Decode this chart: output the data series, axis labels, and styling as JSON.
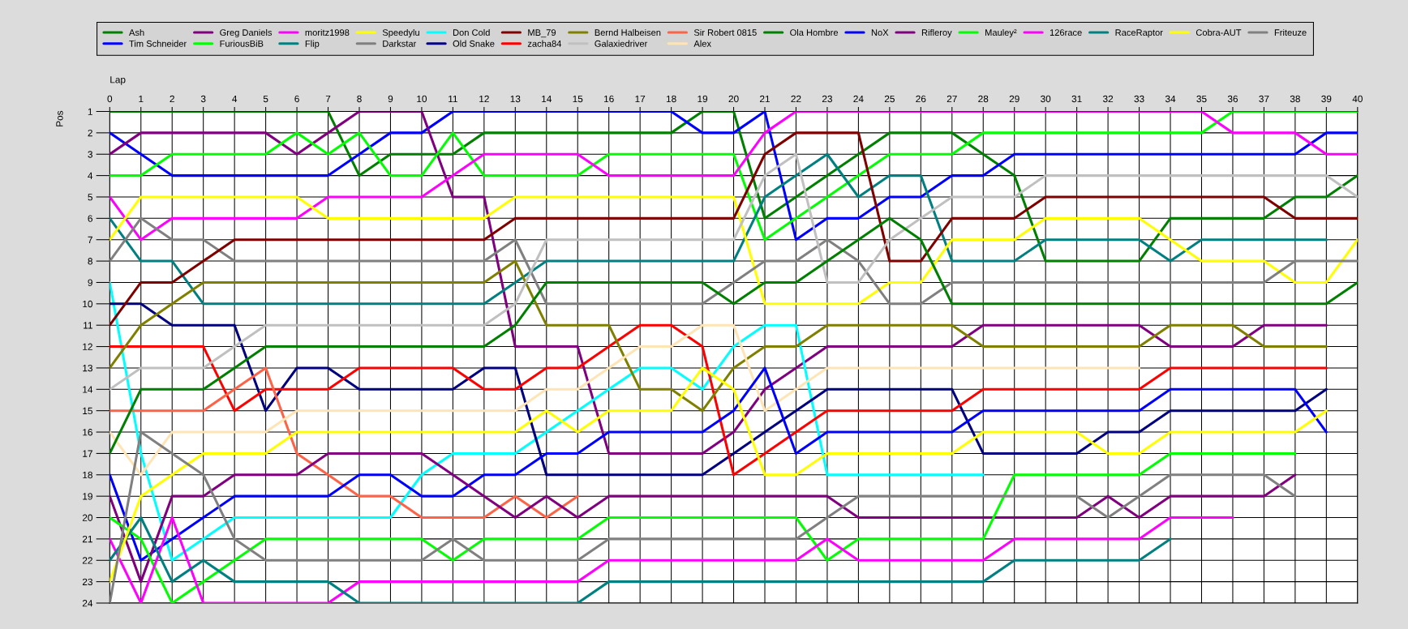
{
  "chart_data": {
    "type": "line",
    "xlabel": "Lap",
    "ylabel": "Pos",
    "x": [
      0,
      1,
      2,
      3,
      4,
      5,
      6,
      7,
      8,
      9,
      10,
      11,
      12,
      13,
      14,
      15,
      16,
      17,
      18,
      19,
      20,
      21,
      22,
      23,
      24,
      25,
      26,
      27,
      28,
      29,
      30,
      31,
      32,
      33,
      34,
      35,
      36,
      37,
      38,
      39,
      40
    ],
    "xlim": [
      0,
      40
    ],
    "xticks": [
      0,
      1,
      2,
      3,
      4,
      5,
      6,
      7,
      8,
      9,
      10,
      11,
      12,
      13,
      14,
      15,
      16,
      17,
      18,
      19,
      20,
      21,
      22,
      23,
      24,
      25,
      26,
      27,
      28,
      29,
      30,
      31,
      32,
      33,
      34,
      35,
      36,
      37,
      38,
      39,
      40
    ],
    "ylim": [
      24,
      1
    ],
    "yticks": [
      1,
      2,
      3,
      4,
      5,
      6,
      7,
      8,
      9,
      10,
      11,
      12,
      13,
      14,
      15,
      16,
      17,
      18,
      19,
      20,
      21,
      22,
      23,
      24
    ],
    "grid": true,
    "legend": "top",
    "series": [
      {
        "name": "Ash",
        "color": "#008000",
        "values": [
          1,
          1,
          1,
          1,
          1,
          1,
          1,
          1,
          4,
          3,
          3,
          3,
          2,
          2,
          2,
          2,
          2,
          2,
          2,
          1,
          1,
          6,
          5,
          4,
          3,
          2,
          2,
          2,
          3,
          4,
          8,
          8,
          8,
          8,
          6,
          6,
          6,
          6,
          5,
          5,
          4
        ]
      },
      {
        "name": "Tim Schneider",
        "color": "#0000ff",
        "values": [
          2,
          3,
          4,
          4,
          4,
          4,
          4,
          4,
          3,
          2,
          2,
          1,
          1,
          1,
          1,
          1,
          1,
          1,
          1,
          2,
          2,
          1,
          7,
          6,
          6,
          5,
          5,
          4,
          4,
          3,
          3,
          3,
          3,
          3,
          3,
          3,
          3,
          3,
          3,
          2,
          2
        ]
      },
      {
        "name": "Greg Daniels",
        "color": "#800080",
        "values": [
          3,
          2,
          2,
          2,
          2,
          2,
          3,
          2,
          1,
          1,
          1,
          5,
          5,
          12,
          12,
          12,
          17,
          17,
          17,
          17,
          16,
          14,
          13,
          12,
          12,
          12,
          12,
          12,
          11,
          11,
          11,
          11,
          11,
          11,
          12,
          12,
          12,
          11,
          11,
          11,
          null
        ]
      },
      {
        "name": "FuriousBiB",
        "color": "#00ff00",
        "values": [
          4,
          4,
          3,
          3,
          3,
          3,
          2,
          3,
          2,
          4,
          4,
          2,
          4,
          4,
          4,
          4,
          3,
          3,
          3,
          3,
          3,
          7,
          6,
          5,
          4,
          3,
          3,
          3,
          2,
          2,
          2,
          2,
          2,
          2,
          2,
          2,
          1,
          1,
          1,
          1,
          1
        ]
      },
      {
        "name": "moritz1998",
        "color": "#ff00ff",
        "values": [
          5,
          7,
          6,
          6,
          6,
          6,
          6,
          5,
          5,
          5,
          5,
          4,
          3,
          3,
          3,
          3,
          4,
          4,
          4,
          4,
          4,
          2,
          1,
          1,
          1,
          1,
          1,
          1,
          1,
          1,
          1,
          1,
          1,
          1,
          1,
          1,
          2,
          2,
          2,
          3,
          3
        ]
      },
      {
        "name": "Flip",
        "color": "#008080",
        "values": [
          6,
          8,
          8,
          10,
          10,
          10,
          10,
          10,
          10,
          10,
          10,
          10,
          10,
          9,
          8,
          8,
          8,
          8,
          8,
          8,
          8,
          5,
          4,
          3,
          5,
          4,
          4,
          8,
          8,
          8,
          7,
          7,
          7,
          7,
          8,
          7,
          7,
          7,
          7,
          7,
          null
        ]
      },
      {
        "name": "Speedylu",
        "color": "#ffff00",
        "values": [
          7,
          5,
          5,
          5,
          5,
          5,
          5,
          6,
          6,
          6,
          6,
          6,
          6,
          5,
          5,
          5,
          5,
          5,
          5,
          5,
          5,
          10,
          10,
          10,
          10,
          9,
          9,
          7,
          7,
          7,
          6,
          6,
          6,
          6,
          7,
          8,
          8,
          8,
          9,
          9,
          7
        ]
      },
      {
        "name": "Darkstar",
        "color": "#808080",
        "values": [
          8,
          6,
          7,
          7,
          8,
          8,
          8,
          8,
          8,
          8,
          8,
          8,
          8,
          7,
          10,
          10,
          10,
          10,
          10,
          10,
          9,
          8,
          8,
          7,
          8,
          10,
          10,
          9,
          9,
          9,
          9,
          9,
          9,
          9,
          9,
          9,
          9,
          9,
          8,
          8,
          8
        ]
      },
      {
        "name": "Don Cold",
        "color": "#00ffff",
        "values": [
          9,
          17,
          22,
          21,
          20,
          20,
          20,
          20,
          20,
          20,
          18,
          17,
          17,
          17,
          16,
          15,
          14,
          13,
          13,
          14,
          12,
          11,
          11,
          18,
          18,
          18,
          18,
          18,
          18,
          null,
          null,
          null,
          null,
          null,
          null,
          null,
          null,
          null,
          null,
          null,
          null
        ]
      },
      {
        "name": "Old Snake",
        "color": "#000080",
        "values": [
          10,
          10,
          11,
          11,
          11,
          15,
          13,
          13,
          14,
          14,
          14,
          14,
          13,
          13,
          18,
          18,
          18,
          18,
          18,
          18,
          17,
          16,
          15,
          14,
          14,
          14,
          14,
          14,
          17,
          17,
          17,
          17,
          16,
          16,
          15,
          15,
          15,
          15,
          15,
          14,
          null
        ]
      },
      {
        "name": "MB_79",
        "color": "#800000",
        "values": [
          11,
          9,
          9,
          8,
          7,
          7,
          7,
          7,
          7,
          7,
          7,
          7,
          7,
          6,
          6,
          6,
          6,
          6,
          6,
          6,
          6,
          3,
          2,
          2,
          2,
          8,
          8,
          6,
          6,
          6,
          5,
          5,
          5,
          5,
          5,
          5,
          5,
          5,
          6,
          6,
          6
        ]
      },
      {
        "name": "zacha84",
        "color": "#ff0000",
        "values": [
          12,
          12,
          12,
          12,
          15,
          14,
          14,
          14,
          13,
          13,
          13,
          13,
          14,
          14,
          13,
          13,
          12,
          11,
          11,
          12,
          18,
          17,
          16,
          15,
          15,
          15,
          15,
          15,
          14,
          14,
          14,
          14,
          14,
          14,
          13,
          13,
          13,
          13,
          13,
          13,
          null
        ]
      },
      {
        "name": "Bernd Halbeisen",
        "color": "#808000",
        "values": [
          13,
          11,
          10,
          9,
          9,
          9,
          9,
          9,
          9,
          9,
          9,
          9,
          9,
          8,
          11,
          11,
          11,
          14,
          14,
          15,
          13,
          12,
          12,
          11,
          11,
          11,
          11,
          11,
          12,
          12,
          12,
          12,
          12,
          12,
          11,
          11,
          11,
          12,
          12,
          12,
          null
        ]
      },
      {
        "name": "Galaxiedriver",
        "color": "#c0c0c0",
        "values": [
          14,
          13,
          13,
          13,
          12,
          11,
          11,
          11,
          11,
          11,
          11,
          11,
          11,
          10,
          7,
          7,
          7,
          7,
          7,
          7,
          7,
          4,
          3,
          9,
          9,
          7,
          6,
          5,
          5,
          5,
          4,
          4,
          4,
          4,
          4,
          4,
          4,
          4,
          4,
          4,
          5
        ]
      },
      {
        "name": "Sir Robert 0815",
        "color": "#ff6347",
        "values": [
          15,
          15,
          15,
          15,
          14,
          13,
          17,
          18,
          19,
          19,
          20,
          20,
          20,
          19,
          20,
          19,
          null,
          null,
          null,
          null,
          null,
          null,
          null,
          null,
          null,
          null,
          null,
          null,
          null,
          null,
          null,
          null,
          null,
          null,
          null,
          null,
          null,
          null,
          null,
          null,
          null
        ]
      },
      {
        "name": "Alex",
        "color": "#ffe4b5",
        "values": [
          16,
          18,
          16,
          16,
          16,
          16,
          15,
          15,
          15,
          15,
          15,
          15,
          15,
          15,
          14,
          14,
          13,
          12,
          12,
          11,
          11,
          15,
          14,
          13,
          13,
          13,
          13,
          13,
          13,
          13,
          13,
          13,
          13,
          13,
          null,
          null,
          null,
          null,
          null,
          null,
          null
        ]
      },
      {
        "name": "Ola Hombre",
        "color": "#008000",
        "values": [
          17,
          14,
          14,
          14,
          13,
          12,
          12,
          12,
          12,
          12,
          12,
          12,
          12,
          11,
          9,
          9,
          9,
          9,
          9,
          9,
          10,
          9,
          9,
          8,
          7,
          6,
          7,
          10,
          10,
          10,
          10,
          10,
          10,
          10,
          10,
          10,
          10,
          10,
          10,
          10,
          9
        ]
      },
      {
        "name": "NoX",
        "color": "#0000ff",
        "values": [
          18,
          22,
          21,
          20,
          19,
          19,
          19,
          19,
          18,
          18,
          19,
          19,
          18,
          18,
          17,
          17,
          16,
          16,
          16,
          16,
          15,
          13,
          17,
          16,
          16,
          16,
          16,
          16,
          15,
          15,
          15,
          15,
          15,
          15,
          14,
          14,
          14,
          14,
          14,
          16,
          null
        ]
      },
      {
        "name": "Rifleroy",
        "color": "#800080",
        "values": [
          19,
          23,
          19,
          19,
          18,
          18,
          18,
          17,
          17,
          17,
          17,
          18,
          19,
          20,
          19,
          20,
          19,
          19,
          19,
          19,
          19,
          19,
          19,
          19,
          20,
          20,
          20,
          20,
          20,
          20,
          20,
          20,
          19,
          20,
          19,
          19,
          19,
          19,
          18,
          null,
          null
        ]
      },
      {
        "name": "Mauley²",
        "color": "#00ff00",
        "values": [
          20,
          21,
          24,
          23,
          22,
          21,
          21,
          21,
          21,
          21,
          21,
          22,
          21,
          21,
          21,
          21,
          20,
          20,
          20,
          20,
          20,
          20,
          20,
          22,
          21,
          21,
          21,
          21,
          21,
          18,
          18,
          18,
          18,
          18,
          17,
          17,
          17,
          17,
          17,
          null,
          null
        ]
      },
      {
        "name": "126race",
        "color": "#ff00ff",
        "values": [
          21,
          24,
          20,
          24,
          24,
          24,
          24,
          24,
          23,
          23,
          23,
          23,
          23,
          23,
          23,
          23,
          22,
          22,
          22,
          22,
          22,
          22,
          22,
          21,
          22,
          22,
          22,
          22,
          22,
          21,
          21,
          21,
          21,
          21,
          20,
          20,
          20,
          null,
          null,
          null,
          null
        ]
      },
      {
        "name": "RaceRaptor",
        "color": "#008080",
        "values": [
          22,
          20,
          23,
          22,
          23,
          23,
          23,
          23,
          24,
          24,
          24,
          24,
          24,
          24,
          24,
          24,
          23,
          23,
          23,
          23,
          23,
          23,
          23,
          23,
          23,
          23,
          23,
          23,
          23,
          22,
          22,
          22,
          22,
          22,
          21,
          null,
          null,
          null,
          null,
          null,
          null
        ]
      },
      {
        "name": "Cobra-AUT",
        "color": "#ffff00",
        "values": [
          23,
          19,
          18,
          17,
          17,
          17,
          16,
          16,
          16,
          16,
          16,
          16,
          16,
          16,
          15,
          16,
          15,
          15,
          15,
          13,
          14,
          18,
          18,
          17,
          17,
          17,
          17,
          17,
          16,
          16,
          16,
          16,
          17,
          17,
          16,
          16,
          16,
          16,
          16,
          15,
          null
        ]
      },
      {
        "name": "Friteuze",
        "color": "#808080",
        "values": [
          24,
          16,
          17,
          18,
          21,
          22,
          22,
          22,
          22,
          22,
          22,
          21,
          22,
          22,
          22,
          22,
          21,
          21,
          21,
          21,
          21,
          21,
          21,
          20,
          19,
          19,
          19,
          19,
          19,
          19,
          19,
          19,
          20,
          19,
          18,
          18,
          18,
          18,
          19,
          null,
          null
        ]
      }
    ]
  }
}
